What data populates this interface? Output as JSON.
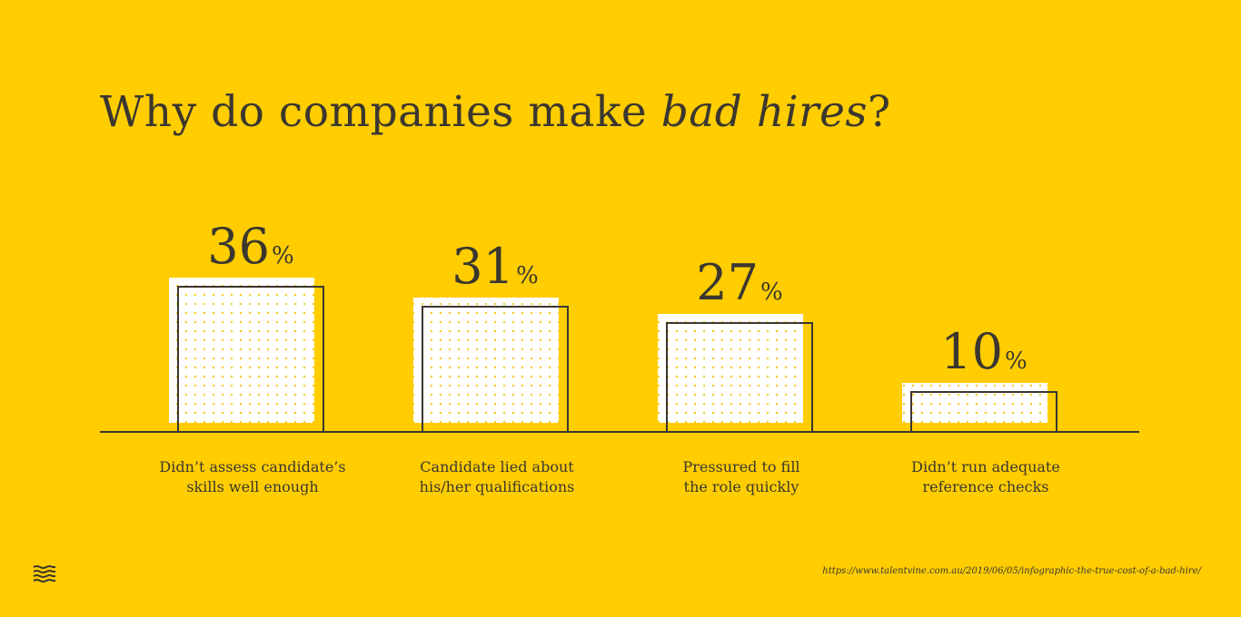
{
  "colors": {
    "background": "#FFCD00",
    "ink": "#3b372f",
    "bar_fill": "#FFFFFF",
    "dot": "#F4C400"
  },
  "title": {
    "prefix": "Why do companies make ",
    "emphasis": "bad hires",
    "suffix": "?"
  },
  "percent_symbol": "%",
  "chart_data": {
    "type": "bar",
    "title": "Why do companies make bad hires?",
    "categories": [
      "Didn’t assess candidate’s skills well enough",
      "Candidate lied about his/her qualifications",
      "Pressured to fill the role quickly",
      "Didn’t run adequate reference checks"
    ],
    "category_lines": [
      [
        "Didn’t assess candidate’s",
        "skills well enough"
      ],
      [
        "Candidate lied about",
        "his/her qualifications"
      ],
      [
        "Pressured to fill",
        "the role quickly"
      ],
      [
        "Didn’t run adequate",
        "reference checks"
      ]
    ],
    "values": [
      36,
      31,
      27,
      10
    ],
    "data_labels": [
      "36",
      "31",
      "27",
      "10"
    ],
    "unit": "%",
    "xlabel": "",
    "ylabel": "",
    "ylim": [
      0,
      36
    ],
    "grid": false,
    "legend": "none"
  },
  "source": "https://www.talentvine.com.au/2019/06/05/infographic-the-true-cost-of-a-bad-hire/",
  "logo_icon": "wave-stack-icon"
}
